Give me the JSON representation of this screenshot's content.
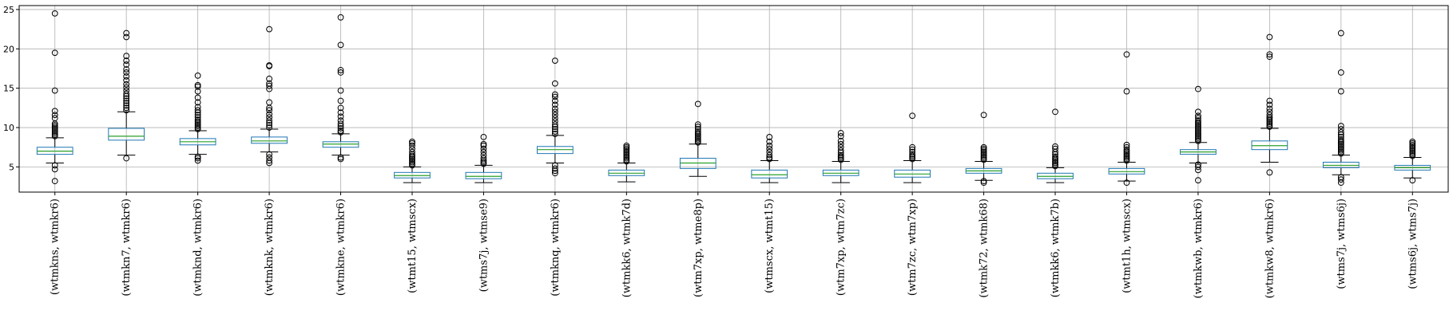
{
  "chart_data": {
    "type": "box",
    "title": "",
    "xlabel": "",
    "ylabel": "",
    "ylim": [
      1.8,
      25.5
    ],
    "yticks": [
      5,
      10,
      15,
      20,
      25
    ],
    "grid": true,
    "colors": {
      "box": "#1f77b4",
      "median": "#2ca02c",
      "whisker": "#000000",
      "grid": "#b0b0b0"
    },
    "boxes": [
      {
        "label": "(wtmkns,  wtmkr6)",
        "whislo": 5.5,
        "q1": 6.6,
        "med": 7.0,
        "q3": 7.5,
        "whishi": 8.7,
        "fliers": [
          3.2,
          4.7,
          5.2,
          8.9,
          9.1,
          9.3,
          9.5,
          9.7,
          9.9,
          10.1,
          10.3,
          10.5,
          11.2,
          11.6,
          12.1,
          14.7,
          19.5,
          24.5
        ]
      },
      {
        "label": "(wtmkn7,  wtmkr6)",
        "whislo": 6.5,
        "q1": 8.4,
        "med": 8.9,
        "q3": 9.9,
        "whishi": 12.0,
        "fliers": [
          6.1,
          12.2,
          12.5,
          12.8,
          13.1,
          13.4,
          13.7,
          14.0,
          14.3,
          14.7,
          15.1,
          15.5,
          16.0,
          16.5,
          17.0,
          17.4,
          18.0,
          18.5,
          19.1,
          21.5,
          22.0
        ]
      },
      {
        "label": "(wtmknd,  wtmkr6)",
        "whislo": 6.6,
        "q1": 7.8,
        "med": 8.2,
        "q3": 8.6,
        "whishi": 9.6,
        "fliers": [
          5.8,
          6.1,
          6.3,
          9.8,
          10.0,
          10.2,
          10.4,
          10.6,
          10.8,
          11.0,
          11.3,
          11.6,
          11.9,
          12.2,
          12.6,
          13.2,
          13.8,
          14.6,
          15.2,
          15.4,
          16.6
        ]
      },
      {
        "label": "(wtmknk,  wtmkr6)",
        "whislo": 6.9,
        "q1": 8.0,
        "med": 8.3,
        "q3": 8.8,
        "whishi": 9.8,
        "fliers": [
          5.5,
          5.8,
          6.2,
          6.6,
          10.0,
          10.3,
          10.6,
          10.9,
          11.3,
          11.7,
          12.2,
          12.5,
          13.2,
          14.9,
          15.3,
          15.6,
          16.2,
          17.8,
          17.9,
          22.5
        ]
      },
      {
        "label": "(wtmkne,  wtmkr6)",
        "whislo": 6.5,
        "q1": 7.5,
        "med": 7.9,
        "q3": 8.2,
        "whishi": 9.2,
        "fliers": [
          6.0,
          6.2,
          9.4,
          9.6,
          9.9,
          10.2,
          10.5,
          10.9,
          11.4,
          11.9,
          12.5,
          13.4,
          14.7,
          17.0,
          17.3,
          20.5,
          24.0
        ]
      },
      {
        "label": "(wtmt15,  wtmscx)",
        "whislo": 3.0,
        "q1": 3.6,
        "med": 3.9,
        "q3": 4.3,
        "whishi": 5.0,
        "fliers": [
          5.2,
          5.4,
          5.6,
          5.8,
          6.0,
          6.2,
          6.4,
          6.6,
          6.9,
          7.3,
          7.7,
          8.0,
          8.2
        ]
      },
      {
        "label": "(wtms7j,  wtmse9)",
        "whislo": 3.0,
        "q1": 3.5,
        "med": 3.8,
        "q3": 4.3,
        "whishi": 5.2,
        "fliers": [
          5.4,
          5.6,
          5.8,
          6.1,
          6.5,
          6.9,
          7.3,
          7.7,
          7.9,
          8.8
        ]
      },
      {
        "label": "(wtmknq,  wtmkr6)",
        "whislo": 5.5,
        "q1": 6.7,
        "med": 7.2,
        "q3": 7.6,
        "whishi": 9.0,
        "fliers": [
          4.2,
          4.5,
          4.8,
          5.2,
          9.2,
          9.5,
          9.8,
          10.1,
          10.4,
          10.8,
          11.2,
          11.6,
          12.0,
          12.4,
          12.9,
          13.4,
          13.9,
          14.2,
          15.6,
          18.5
        ]
      },
      {
        "label": "(wtmkk6,  wtmk7d)",
        "whislo": 3.1,
        "q1": 3.9,
        "med": 4.2,
        "q3": 4.6,
        "whishi": 5.5,
        "fliers": [
          5.7,
          5.9,
          6.1,
          6.3,
          6.5,
          6.7,
          6.9,
          7.1,
          7.3,
          7.5,
          7.7
        ]
      },
      {
        "label": "(wtm7xp,  wtme8p)",
        "whislo": 3.8,
        "q1": 4.8,
        "med": 5.5,
        "q3": 6.1,
        "whishi": 7.9,
        "fliers": [
          8.1,
          8.3,
          8.5,
          8.7,
          8.9,
          9.1,
          9.3,
          9.5,
          9.8,
          10.1,
          10.4,
          13.0
        ]
      },
      {
        "label": "(wtmscx,  wtmt15)",
        "whislo": 3.0,
        "q1": 3.6,
        "med": 4.0,
        "q3": 4.6,
        "whishi": 5.8,
        "fliers": [
          6.0,
          6.2,
          6.5,
          6.9,
          7.3,
          7.7,
          8.2,
          8.8
        ]
      },
      {
        "label": "(wtm7xp,  wtm7zc)",
        "whislo": 3.0,
        "q1": 3.9,
        "med": 4.2,
        "q3": 4.6,
        "whishi": 5.7,
        "fliers": [
          5.9,
          6.1,
          6.3,
          6.5,
          6.8,
          7.1,
          7.5,
          7.9,
          8.3,
          8.9,
          9.3
        ]
      },
      {
        "label": "(wtm7zc,  wtm7xp)",
        "whislo": 3.0,
        "q1": 3.7,
        "med": 4.1,
        "q3": 4.6,
        "whishi": 5.8,
        "fliers": [
          6.0,
          6.2,
          6.4,
          6.6,
          6.9,
          7.2,
          7.5,
          11.5
        ]
      },
      {
        "label": "(wtmk72,  wtmk68)",
        "whislo": 3.3,
        "q1": 4.2,
        "med": 4.5,
        "q3": 4.8,
        "whishi": 5.7,
        "fliers": [
          3.0,
          3.2,
          5.9,
          6.1,
          6.3,
          6.5,
          6.7,
          6.9,
          7.1,
          7.3,
          7.5,
          11.6
        ]
      },
      {
        "label": "(wtmkk6,  wtmk7b)",
        "whislo": 3.0,
        "q1": 3.5,
        "med": 3.8,
        "q3": 4.2,
        "whishi": 4.9,
        "fliers": [
          5.1,
          5.3,
          5.5,
          5.7,
          5.9,
          6.1,
          6.3,
          6.6,
          6.9,
          7.3,
          7.6,
          12.0
        ]
      },
      {
        "label": "(wtmt1h,  wtmscx)",
        "whislo": 3.2,
        "q1": 4.1,
        "med": 4.4,
        "q3": 4.8,
        "whishi": 5.6,
        "fliers": [
          3.0,
          5.8,
          6.0,
          6.2,
          6.4,
          6.6,
          6.8,
          7.0,
          7.2,
          7.5,
          7.8,
          14.6,
          19.3
        ]
      },
      {
        "label": "(wtmkwb,  wtmkr6)",
        "whislo": 5.5,
        "q1": 6.6,
        "med": 6.9,
        "q3": 7.2,
        "whishi": 8.1,
        "fliers": [
          3.3,
          4.6,
          5.0,
          5.3,
          8.3,
          8.5,
          8.7,
          8.9,
          9.1,
          9.3,
          9.5,
          9.7,
          9.9,
          10.1,
          10.3,
          10.5,
          10.7,
          10.9,
          11.2,
          11.5,
          12.0,
          14.9
        ]
      },
      {
        "label": "(wtmkw8,  wtmkr6)",
        "whislo": 5.6,
        "q1": 7.2,
        "med": 7.7,
        "q3": 8.3,
        "whishi": 9.9,
        "fliers": [
          4.3,
          10.1,
          10.3,
          10.5,
          10.7,
          10.9,
          11.1,
          11.3,
          11.6,
          12.0,
          12.4,
          12.9,
          13.4,
          19.0,
          19.3,
          21.5
        ]
      },
      {
        "label": "(wtms7j,  wtms6j)",
        "whislo": 4.0,
        "q1": 4.9,
        "med": 5.2,
        "q3": 5.6,
        "whishi": 6.5,
        "fliers": [
          3.0,
          3.4,
          3.7,
          6.7,
          6.9,
          7.1,
          7.3,
          7.5,
          7.7,
          7.9,
          8.1,
          8.3,
          8.5,
          8.8,
          9.1,
          9.4,
          9.8,
          10.2,
          14.6,
          17.0,
          22.0
        ]
      },
      {
        "label": "(wtms6j,  wtms7j)",
        "whislo": 3.6,
        "q1": 4.6,
        "med": 4.9,
        "q3": 5.2,
        "whishi": 6.2,
        "fliers": [
          3.3,
          6.4,
          6.6,
          6.8,
          7.0,
          7.2,
          7.4,
          7.6,
          7.8,
          8.0,
          8.2
        ]
      }
    ]
  }
}
